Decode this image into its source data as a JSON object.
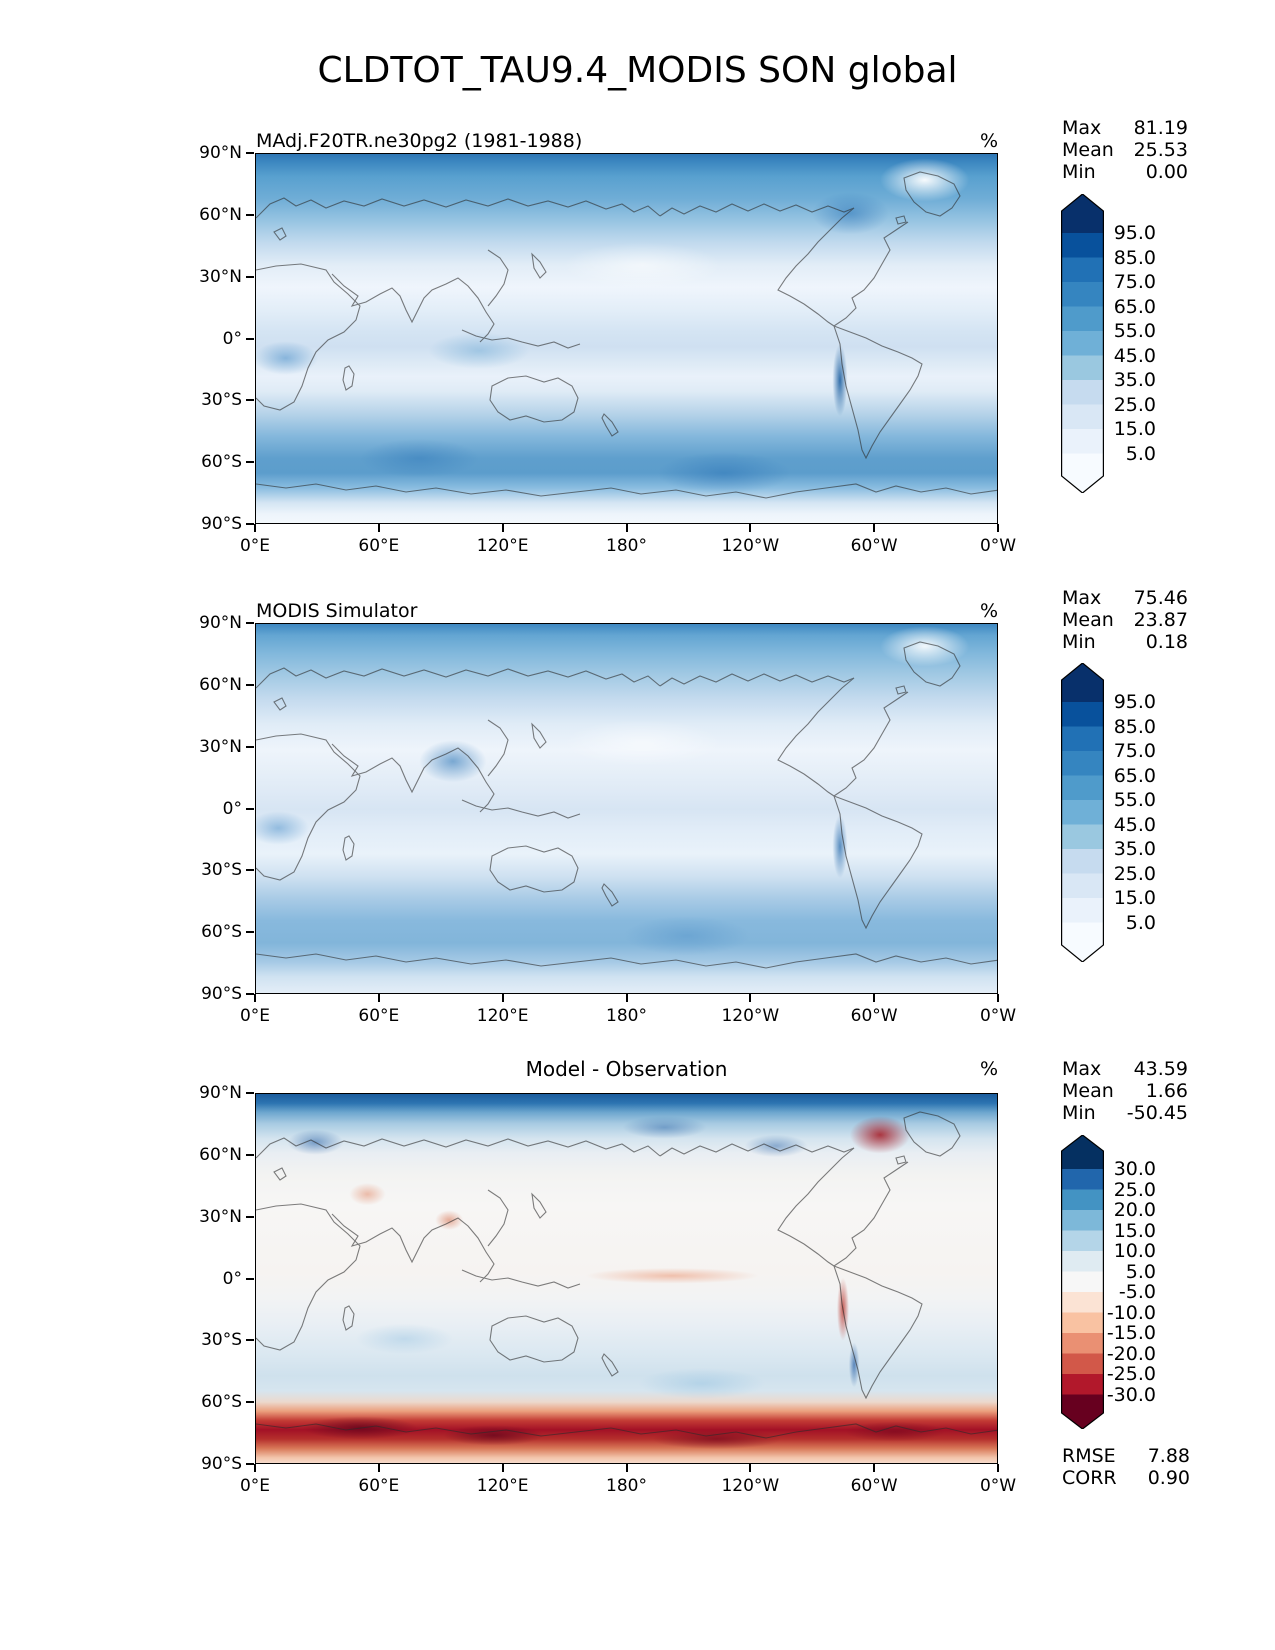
{
  "title": "CLDTOT_TAU9.4_MODIS SON global",
  "chart_data": {
    "type": "heatmap",
    "suptitle": "CLDTOT_TAU9.4_MODIS SON global",
    "variable": "CLDTOT_TAU9.4_MODIS",
    "season": "SON",
    "region": "global",
    "projection": "equirectangular, longitude 0°E→360°E (centered on 180°), latitude 90°N→90°S",
    "axes": {
      "x_tick_labels": [
        "0°E",
        "60°E",
        "120°E",
        "180°",
        "120°W",
        "60°W",
        "0°W"
      ],
      "y_tick_labels": [
        "90°N",
        "60°N",
        "30°N",
        "0°",
        "30°S",
        "60°S",
        "90°S"
      ]
    },
    "panels": [
      {
        "title": "MAdj.F20TR.ne30pg2 (1981-1988)",
        "units": "%",
        "stats": [
          {
            "label": "Max",
            "value": "81.19"
          },
          {
            "label": "Mean",
            "value": "25.53"
          },
          {
            "label": "Min",
            "value": "0.00"
          }
        ],
        "colorbar": {
          "colormap": "Blues",
          "tick_labels": [
            "95.0",
            "85.0",
            "75.0",
            "65.0",
            "55.0",
            "45.0",
            "35.0",
            "25.0",
            "15.0",
            "5.0"
          ],
          "boundaries": [
            95,
            85,
            75,
            65,
            55,
            45,
            35,
            25,
            15,
            5
          ],
          "colors_top_to_bottom": [
            "#08306b",
            "#08519c",
            "#2171b5",
            "#3585c0",
            "#4f9bcb",
            "#6fb0d7",
            "#9ac8e0",
            "#c6dbef",
            "#d9e7f5",
            "#eaf2fb",
            "#f7fbff"
          ]
        }
      },
      {
        "title": "MODIS Simulator",
        "units": "%",
        "stats": [
          {
            "label": "Max",
            "value": "75.46"
          },
          {
            "label": "Mean",
            "value": "23.87"
          },
          {
            "label": "Min",
            "value": "0.18"
          }
        ],
        "colorbar": {
          "colormap": "Blues",
          "tick_labels": [
            "95.0",
            "85.0",
            "75.0",
            "65.0",
            "55.0",
            "45.0",
            "35.0",
            "25.0",
            "15.0",
            "5.0"
          ],
          "boundaries": [
            95,
            85,
            75,
            65,
            55,
            45,
            35,
            25,
            15,
            5
          ],
          "colors_top_to_bottom": [
            "#08306b",
            "#08519c",
            "#2171b5",
            "#3585c0",
            "#4f9bcb",
            "#6fb0d7",
            "#9ac8e0",
            "#c6dbef",
            "#d9e7f5",
            "#eaf2fb",
            "#f7fbff"
          ]
        }
      },
      {
        "title": "Model - Observation",
        "units": "%",
        "stats": [
          {
            "label": "Max",
            "value": "43.59"
          },
          {
            "label": "Mean",
            "value": "1.66"
          },
          {
            "label": "Min",
            "value": "-50.45"
          }
        ],
        "extra_stats": [
          {
            "label": "RMSE",
            "value": "7.88"
          },
          {
            "label": "CORR",
            "value": "0.90"
          }
        ],
        "colorbar": {
          "colormap": "RdBu (blue positive)",
          "tick_labels": [
            "30.0",
            "25.0",
            "20.0",
            "15.0",
            "10.0",
            "5.0",
            "-5.0",
            "-10.0",
            "-15.0",
            "-20.0",
            "-25.0",
            "-30.0"
          ],
          "boundaries": [
            30,
            25,
            20,
            15,
            10,
            5,
            -5,
            -10,
            -15,
            -20,
            -25,
            -30
          ],
          "colors_top_to_bottom": [
            "#053061",
            "#2166ac",
            "#4393c3",
            "#7db8d9",
            "#b4d5e8",
            "#dfebf2",
            "#f7f7f7",
            "#fbe3d4",
            "#f9c2a2",
            "#ea9073",
            "#d25849",
            "#b2182b",
            "#67001f"
          ]
        }
      }
    ]
  }
}
